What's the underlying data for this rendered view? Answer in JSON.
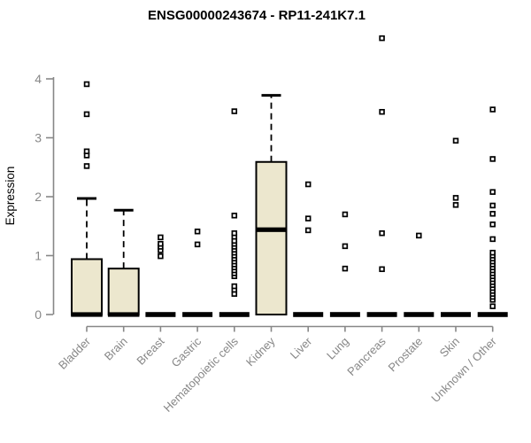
{
  "header": {
    "title": "ENSG00000243674 - RP11-241K7.1"
  },
  "colors": {
    "background": "#ffffff",
    "box_fill": "#ece7ce",
    "box_border": "#000000",
    "median": "#000000",
    "whisker": "#000000",
    "outlier_stroke": "#000000",
    "outlier_fill": "#ffffff",
    "axis": "#878787",
    "title": "#000000"
  },
  "chart_data": {
    "type": "boxplot",
    "title": "ENSG00000243674 - RP11-241K7.1",
    "xlabel": "",
    "ylabel": "Expression",
    "ylim": [
      0,
      4
    ],
    "yticks": [
      0,
      1,
      2,
      3,
      4
    ],
    "grid": false,
    "legend": false,
    "categories": [
      "Bladder",
      "Brain",
      "Breast",
      "Gastric",
      "Hematopoietic cells",
      "Kidney",
      "Liver",
      "Lung",
      "Pancreas",
      "Prostate",
      "Skin",
      "Unknown / Other"
    ],
    "series": [
      {
        "category": "Bladder",
        "whisker_low": 0,
        "q1": 0,
        "median": 0,
        "q3": 0.94,
        "whisker_high": 1.97,
        "outliers": [
          2.52,
          2.7,
          2.77,
          3.4,
          3.91
        ]
      },
      {
        "category": "Brain",
        "whisker_low": 0,
        "q1": 0,
        "median": 0,
        "q3": 0.78,
        "whisker_high": 1.77,
        "outliers": []
      },
      {
        "category": "Breast",
        "whisker_low": 0,
        "q1": 0,
        "median": 0,
        "q3": 0,
        "whisker_high": 0,
        "outliers": [
          0.99,
          1.09,
          1.15,
          1.2,
          1.31
        ]
      },
      {
        "category": "Gastric",
        "whisker_low": 0,
        "q1": 0,
        "median": 0,
        "q3": 0,
        "whisker_high": 0,
        "outliers": [
          1.19,
          1.41
        ]
      },
      {
        "category": "Hematopoietic cells",
        "whisker_low": 0,
        "q1": 0,
        "median": 0,
        "q3": 0,
        "whisker_high": 0,
        "outliers": [
          0.35,
          0.42,
          0.48,
          0.65,
          0.7,
          0.75,
          0.8,
          0.85,
          0.9,
          0.95,
          1.0,
          1.05,
          1.1,
          1.15,
          1.2,
          1.25,
          1.32,
          1.38,
          1.68,
          3.45
        ]
      },
      {
        "category": "Kidney",
        "whisker_low": 0,
        "q1": 0,
        "median": 1.44,
        "q3": 2.59,
        "whisker_high": 3.72,
        "outliers": []
      },
      {
        "category": "Liver",
        "whisker_low": 0,
        "q1": 0,
        "median": 0,
        "q3": 0,
        "whisker_high": 0,
        "outliers": [
          1.43,
          1.63,
          2.21
        ]
      },
      {
        "category": "Lung",
        "whisker_low": 0,
        "q1": 0,
        "median": 0,
        "q3": 0,
        "whisker_high": 0,
        "outliers": [
          0.78,
          1.16,
          1.7
        ]
      },
      {
        "category": "Pancreas",
        "whisker_low": 0,
        "q1": 0,
        "median": 0,
        "q3": 0,
        "whisker_high": 0,
        "outliers": [
          0.77,
          1.38,
          3.44,
          4.69
        ]
      },
      {
        "category": "Prostate",
        "whisker_low": 0,
        "q1": 0,
        "median": 0,
        "q3": 0,
        "whisker_high": 0,
        "outliers": [
          1.34
        ]
      },
      {
        "category": "Skin",
        "whisker_low": 0,
        "q1": 0,
        "median": 0,
        "q3": 0,
        "whisker_high": 0,
        "outliers": [
          1.86,
          1.98,
          2.95
        ]
      },
      {
        "category": "Unknown / Other",
        "whisker_low": 0,
        "q1": 0,
        "median": 0,
        "q3": 0,
        "whisker_high": 0,
        "outliers": [
          0.14,
          0.25,
          0.3,
          0.35,
          0.4,
          0.45,
          0.5,
          0.55,
          0.6,
          0.65,
          0.7,
          0.75,
          0.8,
          0.85,
          0.9,
          0.95,
          1.0,
          1.05,
          1.28,
          1.53,
          1.71,
          1.85,
          2.08,
          2.64,
          3.48
        ]
      }
    ]
  }
}
